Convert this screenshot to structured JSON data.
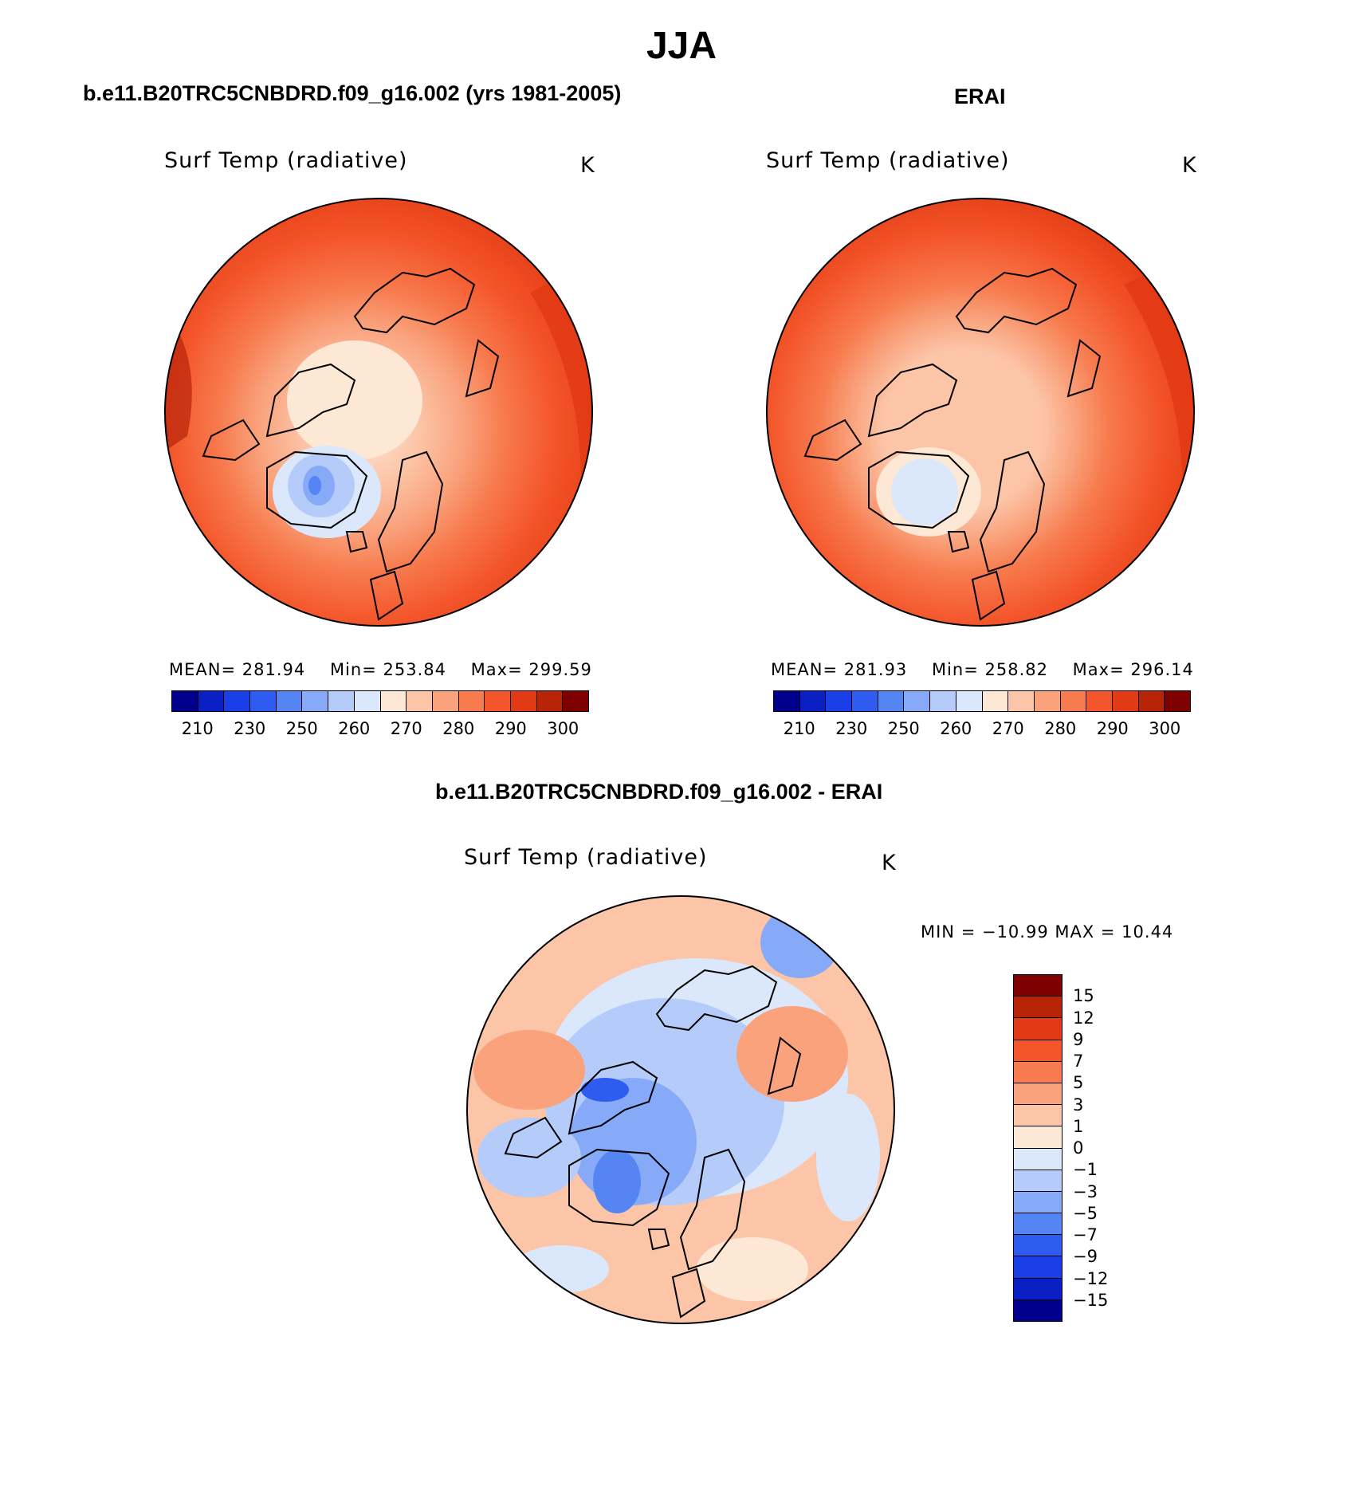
{
  "title": "JJA",
  "panels": [
    {
      "id": "model",
      "heading": "b.e11.B20TRC5CNBDRD.f09_g16.002 (yrs 1981-2005)",
      "variable": "Surf Temp (radiative)",
      "units": "K",
      "stats": {
        "mean_label": "MEAN=",
        "mean": "281.94",
        "min_label": "Min=",
        "min": "253.84",
        "max_label": "Max=",
        "max": "299.59"
      },
      "colorbar_ticks": [
        "210",
        "230",
        "250",
        "260",
        "270",
        "280",
        "290",
        "300"
      ]
    },
    {
      "id": "obs",
      "heading": "ERAI",
      "variable": "Surf Temp (radiative)",
      "units": "K",
      "stats": {
        "mean_label": "MEAN=",
        "mean": "281.93",
        "min_label": "Min=",
        "min": "258.82",
        "max_label": "Max=",
        "max": "296.14"
      },
      "colorbar_ticks": [
        "210",
        "230",
        "250",
        "260",
        "270",
        "280",
        "290",
        "300"
      ]
    },
    {
      "id": "diff",
      "heading": "b.e11.B20TRC5CNBDRD.f09_g16.002 - ERAI",
      "variable": "Surf Temp (radiative)",
      "units": "K",
      "stats_text": "MIN = −10.99 MAX =   10.44",
      "colorbar_ticks": [
        "15",
        "12",
        "9",
        "7",
        "5",
        "3",
        "1",
        "0",
        "−1",
        "−3",
        "−5",
        "−7",
        "−9",
        "−12",
        "−15"
      ]
    }
  ],
  "colors": {
    "abs_scale": [
      "#00008c",
      "#0a1fc4",
      "#1a3ee8",
      "#2e5cf0",
      "#5585f2",
      "#86aaf7",
      "#b5ccfb",
      "#dbe8fc",
      "#fde8d6",
      "#fcc5a8",
      "#f9a27c",
      "#f77b4e",
      "#f4552a",
      "#e23a14",
      "#b82408",
      "#7e0000"
    ],
    "diff_scale": [
      "#7e0000",
      "#b82408",
      "#e23a14",
      "#f4552a",
      "#f77b4e",
      "#f9a27c",
      "#fcc5a8",
      "#fde8d6",
      "#dbe8fc",
      "#b5ccfb",
      "#86aaf7",
      "#5585f2",
      "#2e5cf0",
      "#1a3ee8",
      "#0a1fc4",
      "#00008c"
    ]
  },
  "map_projection": "north polar stereographic"
}
